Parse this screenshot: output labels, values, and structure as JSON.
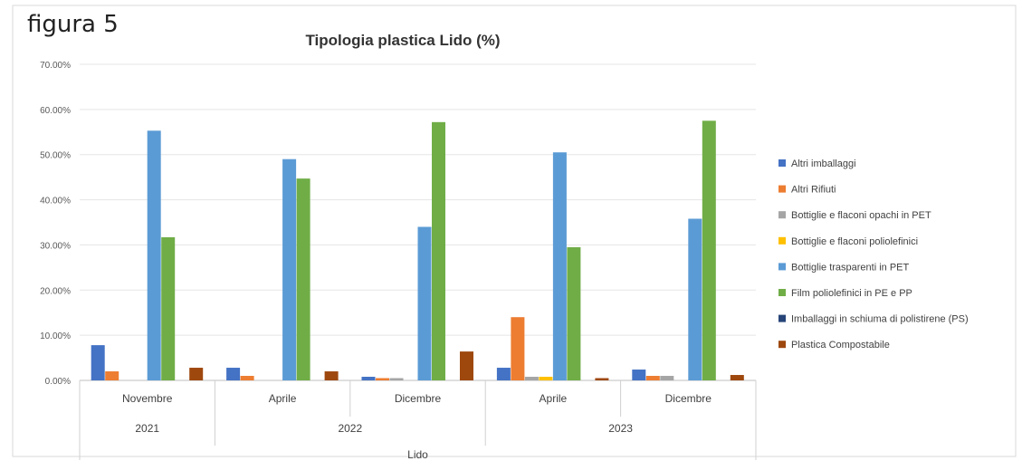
{
  "figure_label": "figura 5",
  "chart_data": {
    "type": "bar",
    "title": "Tipologia plastica Lido (%)",
    "xlabel": "Lido",
    "ylabel": "",
    "ylim": [
      0,
      70
    ],
    "y_ticks": [
      "0.00%",
      "10.00%",
      "20.00%",
      "30.00%",
      "40.00%",
      "50.00%",
      "60.00%",
      "70.00%"
    ],
    "grid": true,
    "legend_position": "right",
    "categories": [
      "Novembre",
      "Aprile",
      "Dicembre",
      "Aprile",
      "Dicembre"
    ],
    "groups": [
      {
        "label": "2021",
        "span": 1
      },
      {
        "label": "2022",
        "span": 2
      },
      {
        "label": "2023",
        "span": 2
      }
    ],
    "series": [
      {
        "name": "Altri imballaggi",
        "color": "#4472c4",
        "values": [
          7.8,
          2.8,
          0.8,
          2.8,
          2.4
        ]
      },
      {
        "name": "Altri Rifiuti",
        "color": "#ed7d31",
        "values": [
          2.0,
          1.0,
          0.5,
          14.0,
          1.0
        ]
      },
      {
        "name": "Bottiglie e flaconi opachi in PET",
        "color": "#a5a5a5",
        "values": [
          0,
          0,
          0.5,
          0.8,
          1.0
        ]
      },
      {
        "name": "Bottiglie e flaconi poliolefinici",
        "color": "#ffc000",
        "values": [
          0,
          0,
          0,
          0.8,
          0
        ]
      },
      {
        "name": "Bottiglie trasparenti in PET",
        "color": "#5b9bd5",
        "values": [
          55.3,
          49.0,
          34.0,
          50.5,
          35.8
        ]
      },
      {
        "name": "Film poliolefinici in PE e PP",
        "color": "#70ad47",
        "values": [
          31.7,
          44.7,
          57.2,
          29.5,
          57.5
        ]
      },
      {
        "name": "Imballaggi in schiuma di polistirene (PS)",
        "color": "#264478",
        "values": [
          0,
          0,
          0,
          0,
          0
        ]
      },
      {
        "name": "Plastica Compostabile",
        "color": "#9e480e",
        "values": [
          2.8,
          2.0,
          6.4,
          0.5,
          1.2
        ]
      }
    ]
  }
}
